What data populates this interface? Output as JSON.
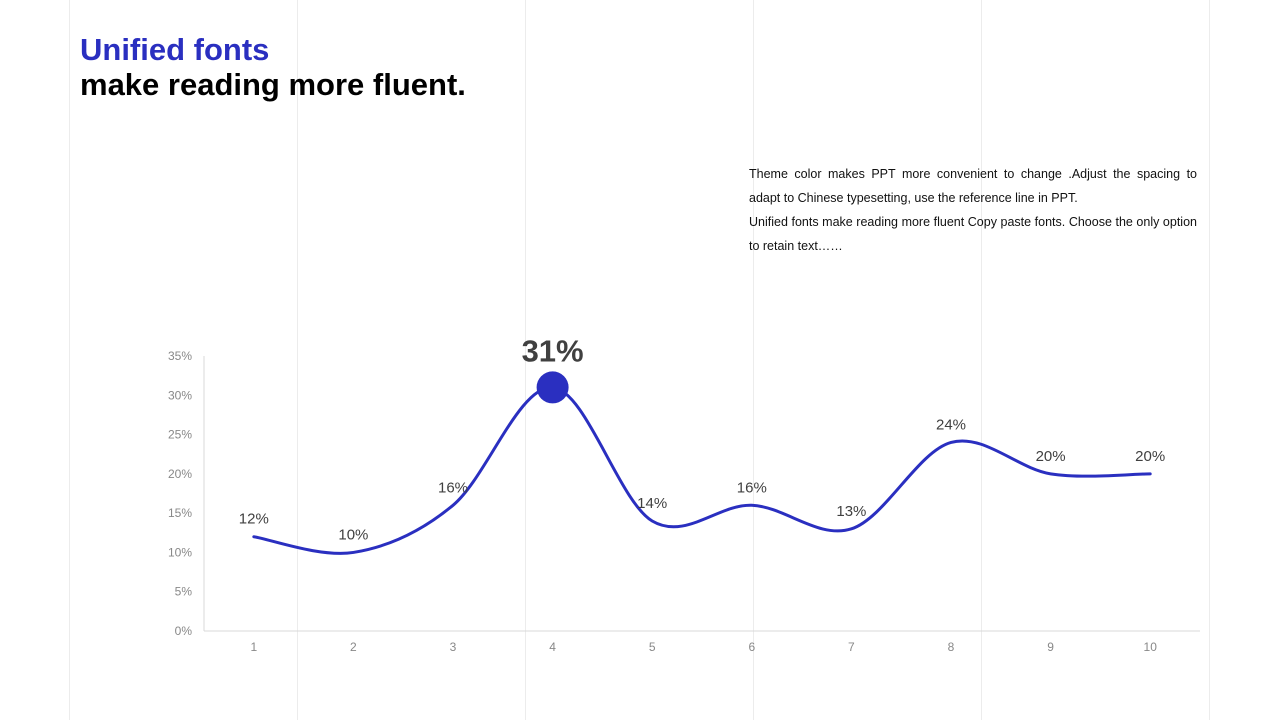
{
  "header": {
    "title_accent": "Unified fonts",
    "title_main": "make reading more fluent."
  },
  "description": {
    "paragraph_1": "Theme  color makes PPT more convenient  to change  .Adjust  the spacing to adapt to Chinese  typesetting, use the reference line in PPT.",
    "paragraph_2": "Unified  fonts make reading more fluent Copy paste fonts. Choose the only option to retain text……"
  },
  "colors": {
    "accent": "#2a2fc0",
    "text": "#000000",
    "label": "#404040",
    "axis": "#888888",
    "guide": "#ececec"
  },
  "chart_data": {
    "type": "line",
    "categories": [
      "1",
      "2",
      "3",
      "4",
      "5",
      "6",
      "7",
      "8",
      "9",
      "10"
    ],
    "series": [
      {
        "values": [
          12,
          10,
          16,
          31,
          14,
          16,
          13,
          24,
          20,
          20
        ]
      }
    ],
    "data_labels": [
      "12%",
      "10%",
      "16%",
      "31%",
      "14%",
      "16%",
      "13%",
      "24%",
      "20%",
      "20%"
    ],
    "highlight_index": 3,
    "y_ticks": [
      "0%",
      "5%",
      "10%",
      "15%",
      "20%",
      "25%",
      "30%",
      "35%"
    ],
    "ylim": [
      0,
      35
    ],
    "smooth": true,
    "grid": false,
    "legend": "none"
  }
}
